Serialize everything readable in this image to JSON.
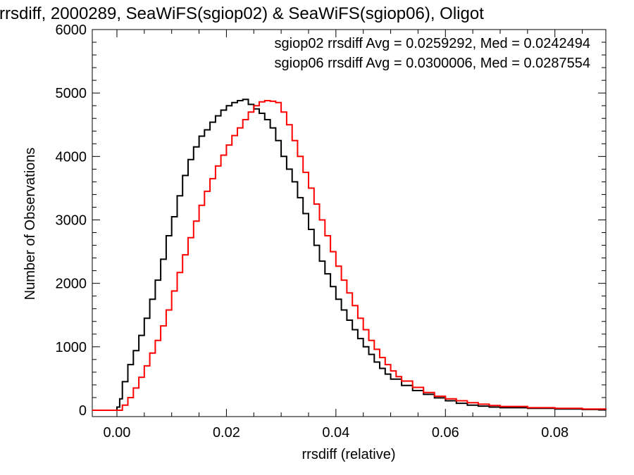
{
  "chart_data": {
    "type": "line",
    "title": "rrsdiff, 2000289, SeaWiFS(sgiop02) & SeaWiFS(sgiop06), Oligot",
    "xlabel": "rrsdiff (relative)",
    "ylabel": "Number of Observations",
    "xlim": [
      -0.0045,
      0.0893
    ],
    "ylim": [
      -100,
      6000
    ],
    "x_ticks": [
      0.0,
      0.02,
      0.04,
      0.06,
      0.08
    ],
    "x_tick_labels": [
      "0.00",
      "0.02",
      "0.04",
      "0.06",
      "0.08"
    ],
    "y_ticks": [
      0,
      1000,
      2000,
      3000,
      4000,
      5000,
      6000
    ],
    "y_tick_labels": [
      "0",
      "1000",
      "2000",
      "3000",
      "4000",
      "5000",
      "6000"
    ],
    "legend_placement": "top-right",
    "annotations": [
      {
        "text": "sgiop02 rrsdiff Avg = 0.0259292, Med = 0.0242494",
        "color": "#000000"
      },
      {
        "text": "sgiop06 rrsdiff Avg = 0.0300006, Med = 0.0287554",
        "color": "#ff0000"
      }
    ],
    "series": [
      {
        "name": "sgiop02",
        "color": "#000000",
        "x": [
          -0.0045,
          -0.001,
          0.0,
          0.0005,
          0.001,
          0.002,
          0.003,
          0.004,
          0.005,
          0.006,
          0.007,
          0.008,
          0.009,
          0.01,
          0.011,
          0.012,
          0.013,
          0.014,
          0.015,
          0.016,
          0.017,
          0.018,
          0.019,
          0.02,
          0.021,
          0.022,
          0.023,
          0.024,
          0.025,
          0.026,
          0.027,
          0.028,
          0.029,
          0.03,
          0.031,
          0.032,
          0.033,
          0.034,
          0.035,
          0.036,
          0.037,
          0.038,
          0.039,
          0.04,
          0.041,
          0.042,
          0.043,
          0.044,
          0.045,
          0.046,
          0.047,
          0.048,
          0.049,
          0.05,
          0.052,
          0.054,
          0.056,
          0.058,
          0.06,
          0.062,
          0.064,
          0.066,
          0.068,
          0.07,
          0.075,
          0.08,
          0.085,
          0.0893
        ],
        "y": [
          0,
          0,
          50,
          180,
          450,
          720,
          940,
          1180,
          1450,
          1750,
          2050,
          2380,
          2750,
          3050,
          3380,
          3700,
          3950,
          4150,
          4320,
          4420,
          4540,
          4640,
          4730,
          4800,
          4850,
          4880,
          4900,
          4820,
          4750,
          4680,
          4580,
          4450,
          4250,
          4000,
          3800,
          3600,
          3350,
          3100,
          2850,
          2600,
          2350,
          2150,
          1950,
          1750,
          1580,
          1420,
          1270,
          1130,
          1000,
          880,
          760,
          660,
          570,
          490,
          390,
          310,
          250,
          195,
          150,
          110,
          80,
          65,
          50,
          40,
          30,
          20,
          12,
          8
        ]
      },
      {
        "name": "sgiop06",
        "color": "#ff0000",
        "x": [
          -0.0045,
          0.0,
          0.001,
          0.002,
          0.003,
          0.004,
          0.005,
          0.006,
          0.007,
          0.008,
          0.009,
          0.01,
          0.011,
          0.012,
          0.013,
          0.014,
          0.015,
          0.016,
          0.017,
          0.018,
          0.019,
          0.02,
          0.021,
          0.022,
          0.023,
          0.024,
          0.025,
          0.026,
          0.027,
          0.028,
          0.029,
          0.03,
          0.031,
          0.032,
          0.033,
          0.034,
          0.035,
          0.036,
          0.037,
          0.038,
          0.039,
          0.04,
          0.041,
          0.042,
          0.043,
          0.044,
          0.045,
          0.046,
          0.047,
          0.048,
          0.049,
          0.05,
          0.051,
          0.052,
          0.054,
          0.056,
          0.058,
          0.06,
          0.062,
          0.064,
          0.066,
          0.068,
          0.07,
          0.075,
          0.08,
          0.085,
          0.0893
        ],
        "y": [
          0,
          0,
          80,
          200,
          350,
          520,
          700,
          900,
          1100,
          1330,
          1580,
          1880,
          2170,
          2450,
          2720,
          2980,
          3230,
          3450,
          3650,
          3850,
          4020,
          4180,
          4330,
          4450,
          4580,
          4700,
          4800,
          4860,
          4880,
          4870,
          4850,
          4700,
          4500,
          4250,
          4000,
          3750,
          3500,
          3250,
          3000,
          2750,
          2500,
          2270,
          2050,
          1850,
          1650,
          1450,
          1270,
          1100,
          960,
          830,
          720,
          620,
          530,
          460,
          360,
          280,
          220,
          180,
          150,
          120,
          95,
          75,
          60,
          40,
          30,
          20,
          10
        ]
      }
    ]
  }
}
